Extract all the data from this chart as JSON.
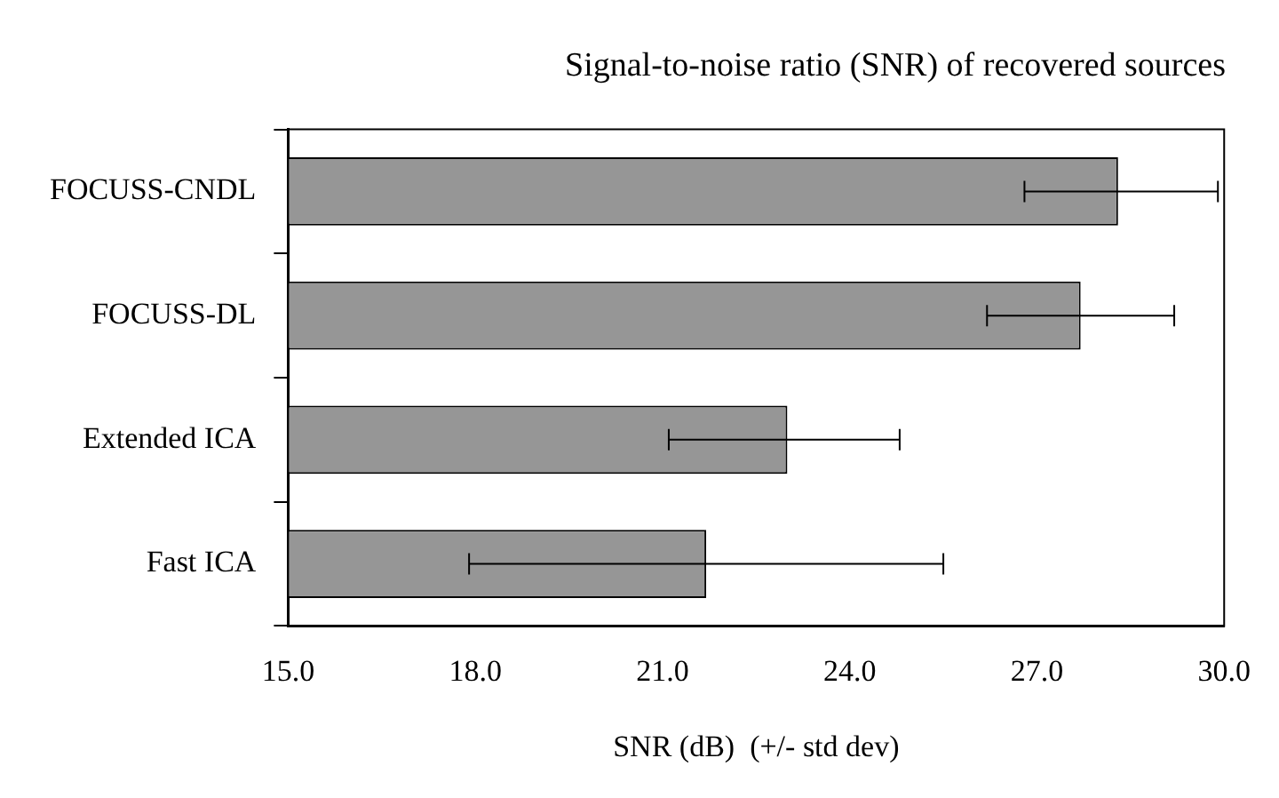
{
  "chart_data": {
    "type": "bar",
    "orientation": "horizontal",
    "title": "Signal-to-noise ratio (SNR) of recovered sources",
    "xlabel": "SNR (dB)  (+/- std dev)",
    "categories": [
      "FOCUSS-CNDL",
      "FOCUSS-DL",
      "Extended ICA",
      "Fast ICA"
    ],
    "values": [
      28.3,
      27.7,
      23.0,
      21.7
    ],
    "color": "#969696",
    "errors": [
      [
        26.8,
        29.9
      ],
      [
        26.2,
        29.2
      ],
      [
        21.1,
        24.8
      ],
      [
        17.9,
        25.5
      ]
    ],
    "xlim": [
      15,
      30
    ],
    "xticks": [
      {
        "value": 15,
        "label": "15.0"
      },
      {
        "value": 18,
        "label": "18.0"
      },
      {
        "value": 21,
        "label": "21.0"
      },
      {
        "value": 24,
        "label": "24.0"
      },
      {
        "value": 27,
        "label": "27.0"
      },
      {
        "value": 30,
        "label": "30.0"
      }
    ],
    "grid": false,
    "legend": false
  }
}
